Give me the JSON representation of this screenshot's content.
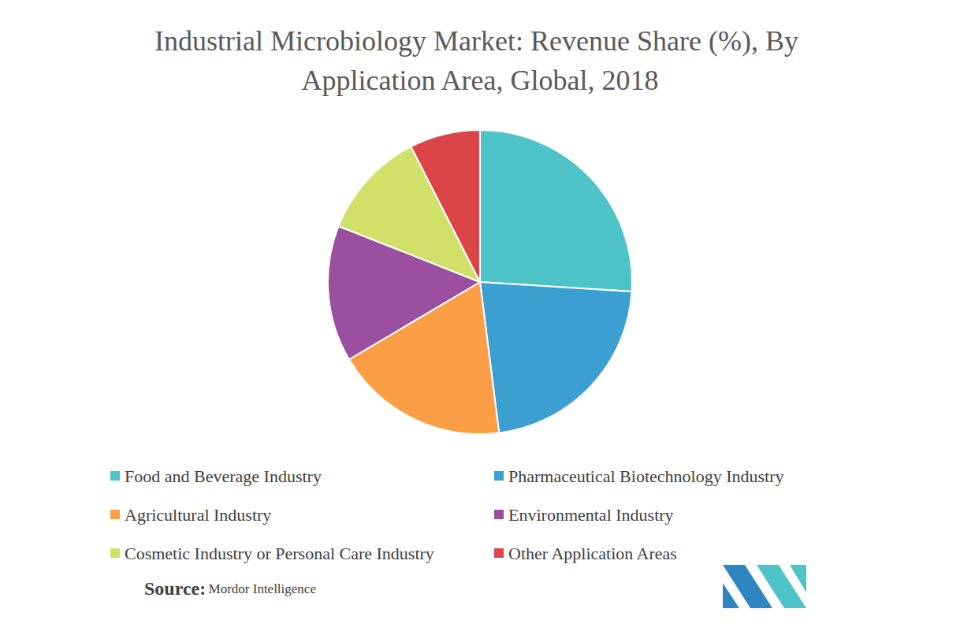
{
  "chart_data": {
    "type": "pie",
    "title": "Industrial Microbiology Market: Revenue Share (%), By Application Area, Global, 2018",
    "categories": [
      "Food and Beverage Industry",
      "Pharmaceutical Biotechnology Industry",
      "Agricultural Industry",
      "Environmental Industry",
      "Cosmetic Industry or Personal Care Industry",
      "Other Application Areas"
    ],
    "values": [
      26,
      22,
      18.5,
      14.5,
      11.5,
      7.5
    ],
    "colors": [
      "#4fc4c8",
      "#3b9fd1",
      "#fb9e45",
      "#9b4f9f",
      "#d1e068",
      "#dc4548"
    ],
    "legend": "bottom",
    "data_labels": false,
    "annotations": [
      "Source:",
      "Mordor Intelligence"
    ]
  }
}
